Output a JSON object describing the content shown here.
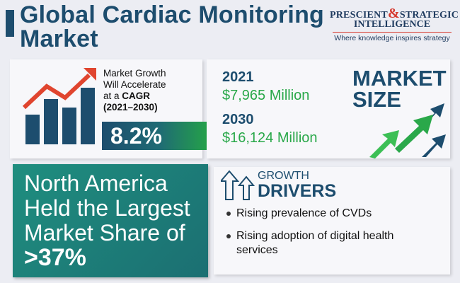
{
  "header": {
    "title_line1": "Global Cardiac Monitoring",
    "title_line2": "Market"
  },
  "logo": {
    "line1_a": "PRESCIENT",
    "ampersand": "&",
    "line1_b": "STRATEGIC",
    "line2": "INTELLIGENCE",
    "tagline": "Where knowledge inspires strategy"
  },
  "growth": {
    "line1": "Market Growth",
    "line2": "Will Accelerate",
    "line3_prefix": "at a",
    "line3_bold": "CAGR",
    "line4": "(2021–2030)",
    "cagr_value": "8.2%",
    "icon": "growth-chart-icon"
  },
  "market_size": {
    "year1": "2021",
    "value1": "$7,965 Million",
    "year2": "2030",
    "value2": "$16,124 Million",
    "label_line1": "MARKET",
    "label_line2": "SIZE",
    "icon": "growth-arrows-icon"
  },
  "north_america": {
    "line1": "North America",
    "line2": "Held the Largest",
    "line3": "Market Share of",
    "share": ">37%"
  },
  "drivers": {
    "small_label": "GROWTH",
    "big_label": "DRIVERS",
    "icon": "growth-drivers-arrows-icon",
    "items": [
      "Rising prevalence of CVDs",
      "Rising adoption of digital health services"
    ]
  },
  "colors": {
    "navy": "#1d4d6e",
    "green": "#2aa84a",
    "red": "#e0452f",
    "teal": "#1f8e7f",
    "background": "#ecedf3"
  }
}
